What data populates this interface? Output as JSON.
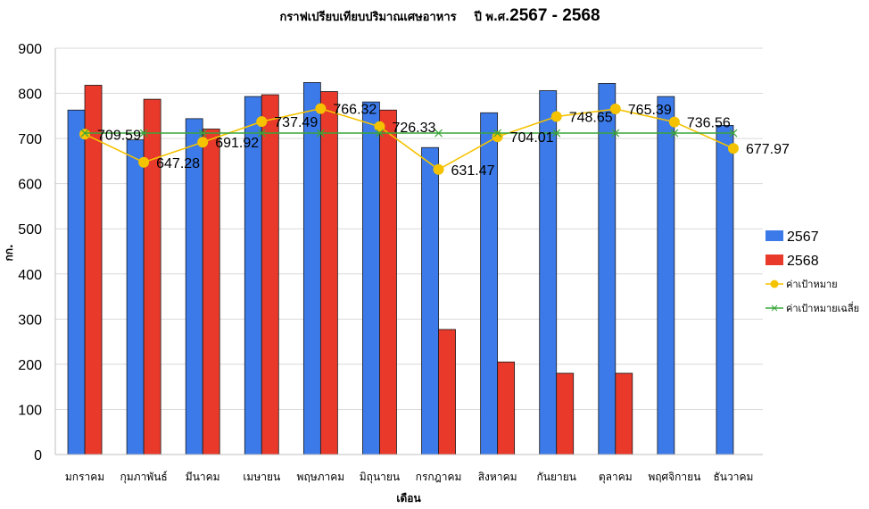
{
  "chart_data": {
    "type": "bar",
    "title": {
      "thai": "กราฟเปรียบเทียบปริมาณเศษอาหาร",
      "year_prefix": "ปี พ.ศ.",
      "years": "2567 - 2568"
    },
    "xlabel": "เดือน",
    "ylabel": "กก.",
    "ylim": [
      0,
      900
    ],
    "yticks": [
      "0",
      "100",
      "200",
      "300",
      "400",
      "500",
      "600",
      "700",
      "800",
      "900"
    ],
    "grid": true,
    "legend_position": "right",
    "categories": [
      "มกราคม",
      "กุมภาพันธ์",
      "มีนาคม",
      "เมษายน",
      "พฤษภาคม",
      "มิถุนายน",
      "กรกฎาคม",
      "สิงหาคม",
      "กันยายน",
      "ตุลาคม",
      "พฤศจิกายน",
      "ธันวาคม"
    ],
    "series": [
      {
        "name": "2567",
        "kind": "bar",
        "color": "#3b7ae8",
        "values": [
          763,
          697,
          744,
          793,
          824,
          781,
          680,
          757,
          806,
          822,
          793,
          729
        ]
      },
      {
        "name": "2568",
        "kind": "bar",
        "color": "#e8392a",
        "values": [
          818,
          787,
          721,
          797,
          804,
          763,
          277,
          205,
          180,
          180,
          null,
          null
        ]
      },
      {
        "name": "ค่าเป้าหมาย",
        "kind": "line",
        "color": "#f5c200",
        "values": [
          709.59,
          647.28,
          691.92,
          737.49,
          766.32,
          726.33,
          631.47,
          704.01,
          748.65,
          765.39,
          736.56,
          677.97
        ],
        "labels": [
          "709.59",
          "647.28",
          "691.92",
          "737.49",
          "766.32",
          "726.33",
          "631.47",
          "704.01",
          "748.65",
          "765.39",
          "736.56",
          "677.97"
        ]
      },
      {
        "name": "ค่าเป้าหมายเฉลี่ย",
        "kind": "line",
        "color": "#3aa53a",
        "values": [
          712,
          712,
          712,
          712,
          712,
          712,
          712,
          712,
          712,
          712,
          712,
          712
        ]
      }
    ]
  }
}
